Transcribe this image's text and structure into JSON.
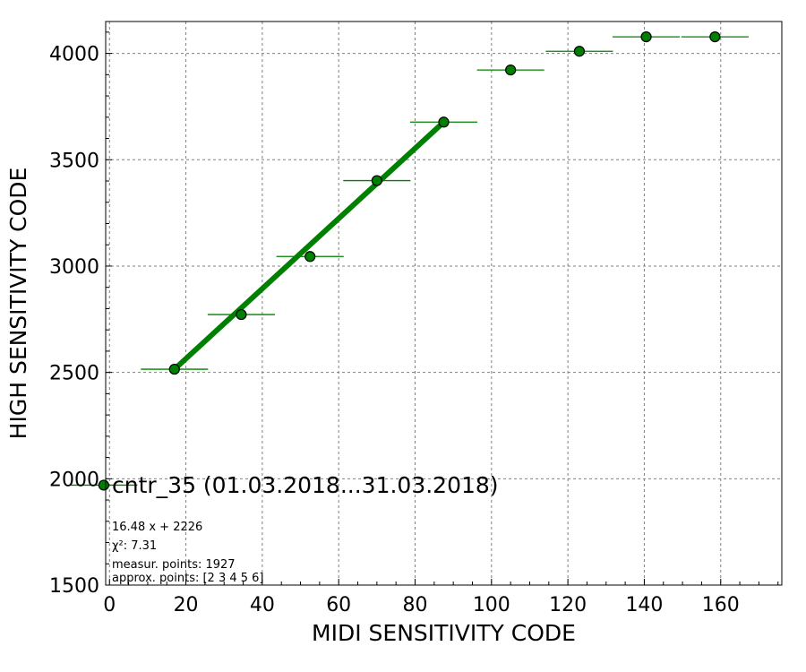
{
  "chart_data": {
    "type": "scatter",
    "xlabel": "MIDI SENSITIVITY CODE",
    "ylabel": "HIGH SENSITIVITY CODE",
    "xlim": [
      -1,
      176
    ],
    "ylim": [
      1500,
      4150
    ],
    "xticks": [
      0,
      20,
      40,
      60,
      80,
      100,
      120,
      140,
      160
    ],
    "yticks": [
      1500,
      2000,
      2500,
      3000,
      3500,
      4000
    ],
    "grid": true,
    "series": [
      {
        "points": [
          {
            "x": -1.5,
            "y": 1970,
            "xerr": 8.8
          },
          {
            "x": 17,
            "y": 2515,
            "xerr": 8.8
          },
          {
            "x": 34.5,
            "y": 2772,
            "xerr": 8.8
          },
          {
            "x": 52.5,
            "y": 3045,
            "xerr": 8.8
          },
          {
            "x": 70,
            "y": 3402,
            "xerr": 8.8
          },
          {
            "x": 87.5,
            "y": 3677,
            "xerr": 8.8
          },
          {
            "x": 105,
            "y": 3922,
            "xerr": 8.8
          },
          {
            "x": 123,
            "y": 4010,
            "xerr": 8.8
          },
          {
            "x": 140.5,
            "y": 4078,
            "xerr": 8.8
          },
          {
            "x": 158.5,
            "y": 4078,
            "xerr": 8.8
          }
        ],
        "color": "#008000"
      }
    ],
    "fit_line": {
      "slope": 16.48,
      "intercept": 2226,
      "x_range": [
        17,
        87.5
      ],
      "color": "#008000"
    },
    "legend": {
      "label": "cntr_35 (01.03.2018...31.03.2018)",
      "placement": "lower-left"
    },
    "annotations": [
      "16.48 x + 2226",
      "χ²: 7.31",
      "measur. points: 1927",
      "approx. points: [2 3 4 5 6]"
    ]
  }
}
